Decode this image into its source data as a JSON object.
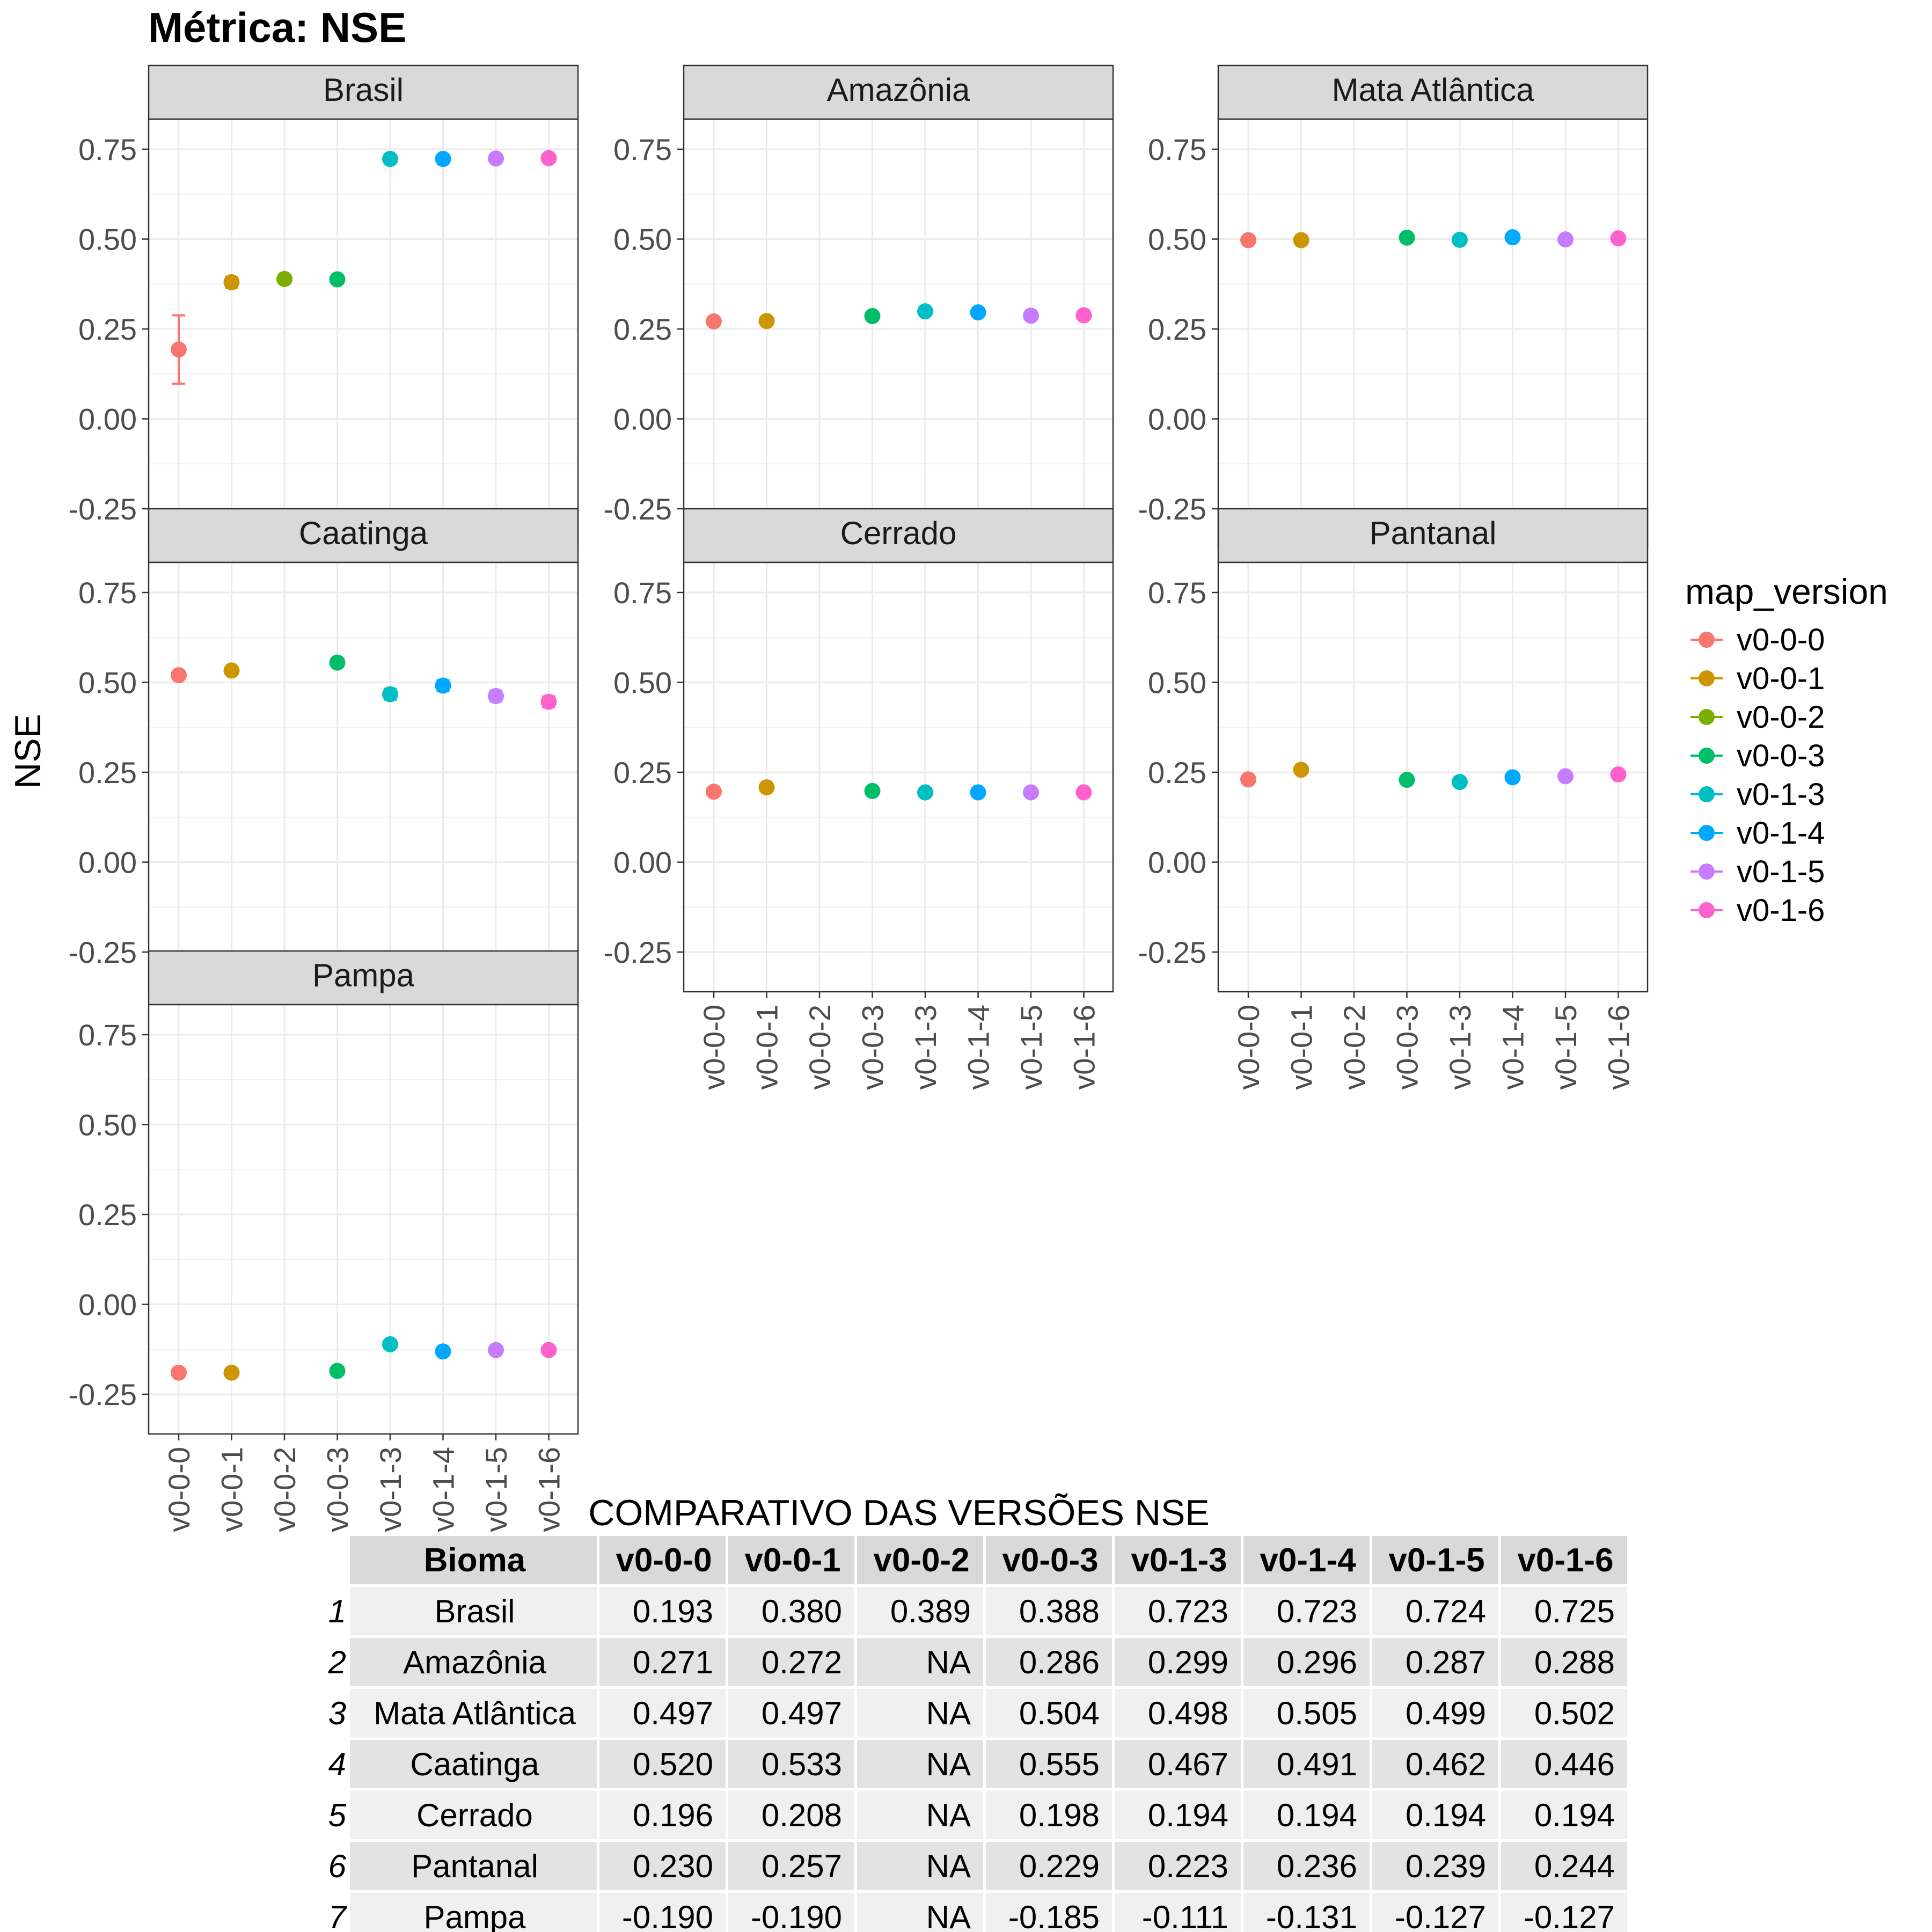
{
  "chart_data": {
    "type": "scatter",
    "title": "Métrica: NSE",
    "ylabel": "NSE",
    "xlabel": "",
    "ylim": [
      -0.25,
      0.75
    ],
    "yticks": [
      "0.75",
      "0.50",
      "0.25",
      "0.00",
      "-0.25"
    ],
    "ytick_values": [
      0.75,
      0.5,
      0.25,
      0.0,
      -0.25
    ],
    "grid": true,
    "categories": [
      "v0-0-0",
      "v0-0-1",
      "v0-0-2",
      "v0-0-3",
      "v0-1-3",
      "v0-1-4",
      "v0-1-5",
      "v0-1-6"
    ],
    "legend": {
      "title": "map_version",
      "position": "right",
      "entries": [
        "v0-0-0",
        "v0-0-1",
        "v0-0-2",
        "v0-0-3",
        "v0-1-3",
        "v0-1-4",
        "v0-1-5",
        "v0-1-6"
      ],
      "colors": [
        "#F8766D",
        "#CD9600",
        "#7CAE00",
        "#00BE67",
        "#00BFC4",
        "#00A9FF",
        "#C77CFF",
        "#FF61CC"
      ]
    },
    "panels": [
      {
        "name": "Brasil",
        "values": [
          0.193,
          0.38,
          0.389,
          0.388,
          0.723,
          0.723,
          0.724,
          0.725
        ],
        "error": [
          0.095,
          0.015,
          0.012,
          0.008,
          0.01,
          0.006,
          0.006,
          0.006
        ]
      },
      {
        "name": "Amazônia",
        "values": [
          0.271,
          0.272,
          null,
          0.286,
          0.299,
          0.296,
          0.287,
          0.288
        ],
        "error": [
          0,
          0,
          null,
          0,
          0,
          0,
          0,
          0
        ]
      },
      {
        "name": "Mata Atlântica",
        "values": [
          0.497,
          0.497,
          null,
          0.504,
          0.498,
          0.505,
          0.499,
          0.502
        ],
        "error": [
          0,
          0,
          null,
          0,
          0,
          0,
          0,
          0
        ]
      },
      {
        "name": "Caatinga",
        "values": [
          0.52,
          0.533,
          null,
          0.555,
          0.467,
          0.491,
          0.462,
          0.446
        ],
        "error": [
          0,
          0,
          null,
          0,
          0.015,
          0.015,
          0.015,
          0.015
        ]
      },
      {
        "name": "Cerrado",
        "values": [
          0.196,
          0.208,
          null,
          0.198,
          0.194,
          0.194,
          0.194,
          0.194
        ],
        "error": [
          0,
          0,
          null,
          0,
          0,
          0,
          0,
          0
        ]
      },
      {
        "name": "Pantanal",
        "values": [
          0.23,
          0.257,
          null,
          0.229,
          0.223,
          0.236,
          0.239,
          0.244
        ],
        "error": [
          0,
          0,
          null,
          0,
          0,
          0,
          0,
          0
        ]
      },
      {
        "name": "Pampa",
        "values": [
          -0.19,
          -0.19,
          null,
          -0.185,
          -0.111,
          -0.131,
          -0.127,
          -0.127
        ],
        "error": [
          0,
          0,
          null,
          0,
          0,
          0.01,
          0.008,
          0.008
        ]
      }
    ]
  },
  "table": {
    "title": "COMPARATIVO DAS VERSÕES NSE",
    "headers": [
      "Bioma",
      "v0-0-0",
      "v0-0-1",
      "v0-0-2",
      "v0-0-3",
      "v0-1-3",
      "v0-1-4",
      "v0-1-5",
      "v0-1-6"
    ],
    "rows": [
      {
        "index": "1",
        "cells": [
          "Brasil",
          "0.193",
          "0.380",
          "0.389",
          "0.388",
          "0.723",
          "0.723",
          "0.724",
          "0.725"
        ]
      },
      {
        "index": "2",
        "cells": [
          "Amazônia",
          "0.271",
          "0.272",
          "NA",
          "0.286",
          "0.299",
          "0.296",
          "0.287",
          "0.288"
        ]
      },
      {
        "index": "3",
        "cells": [
          "Mata Atlântica",
          "0.497",
          "0.497",
          "NA",
          "0.504",
          "0.498",
          "0.505",
          "0.499",
          "0.502"
        ]
      },
      {
        "index": "4",
        "cells": [
          "Caatinga",
          "0.520",
          "0.533",
          "NA",
          "0.555",
          "0.467",
          "0.491",
          "0.462",
          "0.446"
        ]
      },
      {
        "index": "5",
        "cells": [
          "Cerrado",
          "0.196",
          "0.208",
          "NA",
          "0.198",
          "0.194",
          "0.194",
          "0.194",
          "0.194"
        ]
      },
      {
        "index": "6",
        "cells": [
          "Pantanal",
          "0.230",
          "0.257",
          "NA",
          "0.229",
          "0.223",
          "0.236",
          "0.239",
          "0.244"
        ]
      },
      {
        "index": "7",
        "cells": [
          "Pampa",
          "-0.190",
          "-0.190",
          "NA",
          "-0.185",
          "-0.111",
          "-0.131",
          "-0.127",
          "-0.127"
        ]
      }
    ]
  }
}
